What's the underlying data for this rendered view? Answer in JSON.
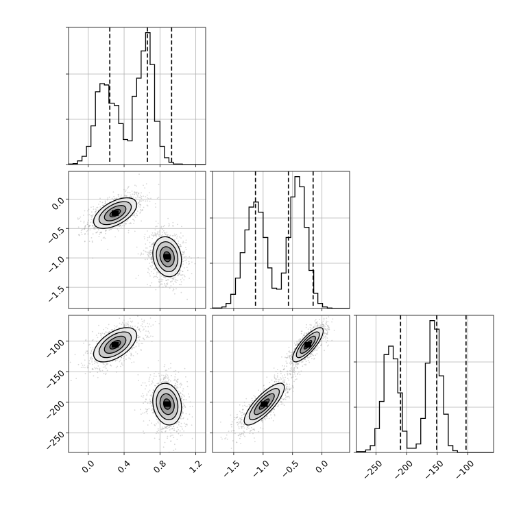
{
  "chart_data": {
    "type": "corner",
    "colors": {
      "line": "#000000",
      "grid": "#b0b0b0",
      "points": "#8c8c8c",
      "density": "#000000"
    },
    "grid": true,
    "parameters": [
      {
        "range": [
          -0.22,
          1.31
        ],
        "ticks": [
          0.0,
          0.4,
          0.8,
          1.2
        ],
        "tick_labels": [
          "0.0",
          "0.4",
          "0.8",
          "1.2"
        ],
        "quantiles": [
          0.24,
          0.66,
          0.93
        ],
        "hist_bins": [
          -0.22,
          -0.17,
          -0.12,
          -0.07,
          -0.02,
          0.03,
          0.08,
          0.13,
          0.18,
          0.23,
          0.29,
          0.34,
          0.39,
          0.44,
          0.49,
          0.54,
          0.59,
          0.64,
          0.69,
          0.74,
          0.8,
          0.85,
          0.9,
          0.95,
          1.0,
          1.05,
          1.1,
          1.15,
          1.2,
          1.25,
          1.31
        ],
        "hist_counts": [
          1,
          2,
          8,
          18,
          40,
          85,
          160,
          178,
          175,
          135,
          130,
          90,
          55,
          52,
          150,
          190,
          250,
          290,
          220,
          95,
          40,
          15,
          5,
          1,
          1,
          0,
          0,
          0,
          0,
          0
        ]
      },
      {
        "range": [
          -1.86,
          0.47
        ],
        "ticks": [
          -1.5,
          -1.0,
          -0.5,
          0.0
        ],
        "tick_labels": [
          "−1.5",
          "−1.0",
          "−0.5",
          "0.0"
        ],
        "quantiles": [
          -1.13,
          -0.57,
          -0.15
        ],
        "hist_bins": [
          -1.86,
          -1.78,
          -1.7,
          -1.63,
          -1.55,
          -1.47,
          -1.39,
          -1.31,
          -1.24,
          -1.16,
          -1.08,
          -1.0,
          -0.92,
          -0.85,
          -0.77,
          -0.69,
          -0.61,
          -0.53,
          -0.46,
          -0.38,
          -0.3,
          -0.22,
          -0.14,
          -0.07,
          0.01,
          0.09,
          0.17,
          0.25,
          0.33,
          0.4,
          0.47
        ],
        "hist_counts": [
          1,
          1,
          3,
          10,
          28,
          60,
          110,
          155,
          200,
          210,
          190,
          140,
          80,
          40,
          38,
          70,
          140,
          220,
          260,
          240,
          160,
          75,
          30,
          10,
          3,
          1,
          0,
          0,
          0,
          0
        ]
      },
      {
        "range": [
          -282,
          -58
        ],
        "ticks": [
          -250,
          -200,
          -150,
          -100
        ],
        "tick_labels": [
          "−250",
          "−200",
          "−150",
          "−100"
        ],
        "quantiles": [
          -210,
          -151,
          -103
        ],
        "hist_bins": [
          -282,
          -274.5,
          -267,
          -259.5,
          -252,
          -244.5,
          -237,
          -229.5,
          -222,
          -214.5,
          -207,
          -199.5,
          -192,
          -184.5,
          -177,
          -169.5,
          -162,
          -154.5,
          -147,
          -139.5,
          -132,
          -124.5,
          -117,
          -109.5,
          -102,
          -94.5,
          -87,
          -79.5,
          -72,
          -64.5,
          -58
        ],
        "hist_counts": [
          1,
          1,
          3,
          8,
          28,
          60,
          115,
          125,
          110,
          70,
          25,
          5,
          5,
          10,
          40,
          105,
          155,
          145,
          90,
          45,
          8,
          2,
          0,
          0,
          0,
          0,
          0,
          0,
          0,
          0
        ]
      }
    ],
    "modes": [
      {
        "p0": 0.3,
        "p1": -0.24,
        "p2": -106,
        "s0": 0.12,
        "s1": 0.13,
        "s2": 14
      },
      {
        "p0": 0.88,
        "p1": -0.98,
        "p2": -203,
        "s0": 0.08,
        "s1": 0.17,
        "s2": 17
      }
    ],
    "contour_levels": [
      0.5,
      1.0,
      1.5,
      2.0
    ]
  }
}
